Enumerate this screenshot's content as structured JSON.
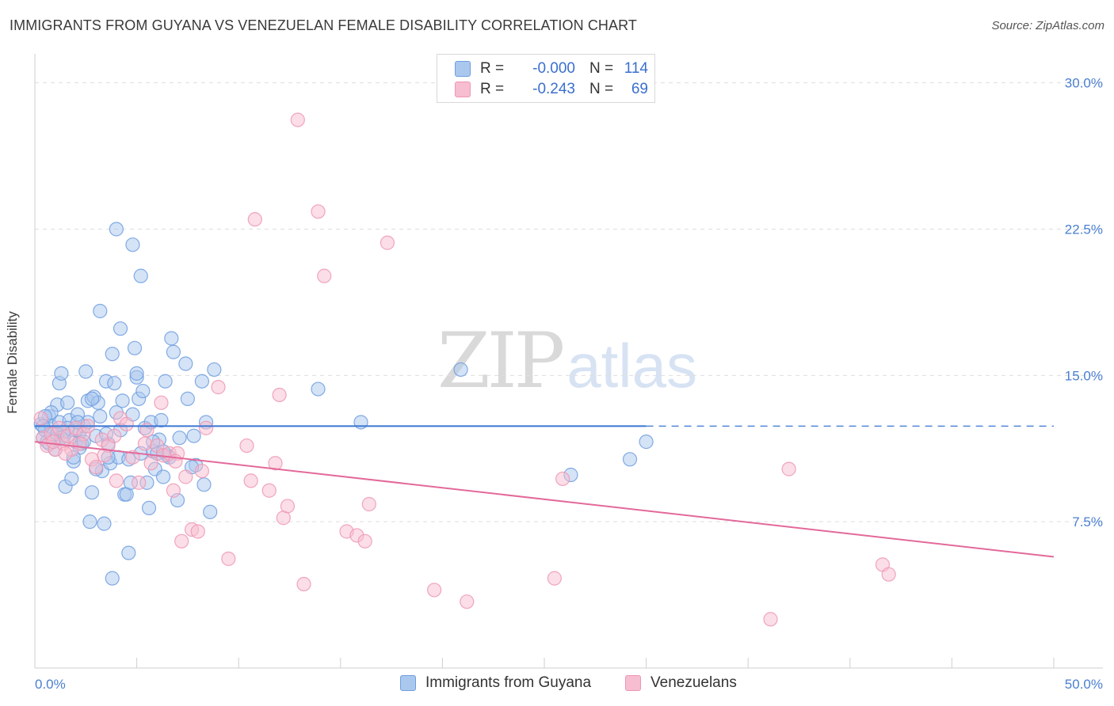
{
  "title": "IMMIGRANTS FROM GUYANA VS VENEZUELAN FEMALE DISABILITY CORRELATION CHART",
  "source": "Source: ZipAtlas.com",
  "watermark": {
    "zip": "ZIP",
    "atlas": "atlas"
  },
  "colors": {
    "blue_fill": "#aac7ee",
    "blue_stroke": "#6f9ee0",
    "blue_line": "#3a76d2",
    "pink_fill": "#f7bdd0",
    "pink_stroke": "#ee96b3",
    "pink_line": "#e3699a",
    "grid": "#dedede",
    "tick_text": "#4a7fd0"
  },
  "legend": {
    "blue": {
      "r_label": "R =",
      "r_value": "-0.000",
      "n_label": "N =",
      "n_value": "114"
    },
    "pink": {
      "r_label": "R =",
      "r_value": "-0.243",
      "n_label": "N =",
      "n_value": "69"
    }
  },
  "chart_data": {
    "type": "scatter",
    "title": "IMMIGRANTS FROM GUYANA VS VENEZUELAN FEMALE DISABILITY CORRELATION CHART",
    "xlabel": "",
    "ylabel": "Female Disability",
    "xlim": [
      0,
      50
    ],
    "ylim": [
      0,
      31
    ],
    "x_tick_labels": [
      "0.0%",
      "50.0%"
    ],
    "y_ticks": [
      7.5,
      15.0,
      22.5,
      30.0
    ],
    "y_tick_labels": [
      "7.5%",
      "15.0%",
      "22.5%",
      "30.0%"
    ],
    "grid": true,
    "series": [
      {
        "name": "Immigrants from Guyana",
        "color": "blue",
        "trend": {
          "x0": 0,
          "y0": 12.4,
          "x1": 30,
          "y1": 12.4,
          "dashed_to": 50
        },
        "points": [
          [
            0.3,
            12.5
          ],
          [
            0.4,
            11.8
          ],
          [
            0.5,
            12.2
          ],
          [
            0.6,
            11.6
          ],
          [
            0.7,
            12.9
          ],
          [
            0.8,
            12.4
          ],
          [
            0.9,
            12.0
          ],
          [
            1.0,
            11.7
          ],
          [
            1.1,
            13.5
          ],
          [
            1.2,
            14.6
          ],
          [
            1.2,
            12.6
          ],
          [
            1.3,
            15.1
          ],
          [
            1.4,
            11.9
          ],
          [
            1.5,
            9.3
          ],
          [
            1.6,
            13.6
          ],
          [
            1.7,
            12.7
          ],
          [
            1.8,
            9.7
          ],
          [
            1.9,
            10.6
          ],
          [
            2.0,
            11.6
          ],
          [
            2.1,
            13.0
          ],
          [
            2.2,
            12.1
          ],
          [
            2.3,
            11.5
          ],
          [
            2.4,
            12.4
          ],
          [
            2.5,
            15.2
          ],
          [
            2.6,
            13.7
          ],
          [
            2.7,
            7.5
          ],
          [
            2.8,
            9.0
          ],
          [
            2.9,
            13.9
          ],
          [
            3.0,
            11.9
          ],
          [
            3.1,
            13.6
          ],
          [
            3.2,
            18.3
          ],
          [
            3.3,
            10.1
          ],
          [
            3.4,
            7.4
          ],
          [
            3.5,
            14.7
          ],
          [
            3.6,
            11.5
          ],
          [
            3.7,
            10.5
          ],
          [
            3.8,
            16.1
          ],
          [
            3.9,
            14.6
          ],
          [
            4.0,
            13.1
          ],
          [
            4.1,
            10.8
          ],
          [
            4.2,
            12.2
          ],
          [
            4.3,
            13.7
          ],
          [
            4.4,
            8.9
          ],
          [
            4.5,
            8.9
          ],
          [
            4.6,
            5.9
          ],
          [
            4.7,
            9.5
          ],
          [
            4.8,
            21.7
          ],
          [
            4.9,
            16.4
          ],
          [
            5.0,
            14.9
          ],
          [
            5.1,
            13.8
          ],
          [
            5.2,
            11.0
          ],
          [
            5.3,
            14.2
          ],
          [
            5.4,
            12.3
          ],
          [
            5.5,
            9.5
          ],
          [
            5.6,
            8.2
          ],
          [
            5.7,
            12.6
          ],
          [
            5.8,
            11.1
          ],
          [
            5.9,
            10.2
          ],
          [
            6.1,
            11.7
          ],
          [
            6.2,
            12.7
          ],
          [
            6.3,
            9.8
          ],
          [
            6.4,
            14.7
          ],
          [
            6.5,
            10.9
          ],
          [
            6.6,
            10.8
          ],
          [
            6.7,
            16.9
          ],
          [
            6.8,
            16.2
          ],
          [
            7.0,
            8.6
          ],
          [
            7.1,
            11.8
          ],
          [
            7.4,
            15.6
          ],
          [
            7.5,
            13.8
          ],
          [
            7.8,
            11.9
          ],
          [
            7.9,
            10.4
          ],
          [
            8.2,
            14.7
          ],
          [
            8.3,
            9.4
          ],
          [
            8.4,
            12.6
          ],
          [
            8.6,
            8.0
          ],
          [
            8.8,
            15.3
          ],
          [
            2.0,
            12.2
          ],
          [
            1.0,
            11.2
          ],
          [
            3.5,
            12.0
          ],
          [
            4.0,
            22.5
          ],
          [
            5.2,
            20.1
          ],
          [
            6.0,
            11.0
          ],
          [
            2.2,
            11.3
          ],
          [
            0.8,
            13.1
          ],
          [
            1.6,
            12.3
          ],
          [
            2.6,
            12.6
          ],
          [
            3.0,
            10.2
          ],
          [
            3.8,
            4.6
          ],
          [
            4.2,
            17.4
          ],
          [
            5.0,
            15.1
          ],
          [
            6.3,
            11.1
          ],
          [
            4.6,
            10.7
          ],
          [
            3.2,
            12.9
          ],
          [
            1.9,
            10.8
          ],
          [
            2.8,
            13.8
          ],
          [
            1.4,
            12.1
          ],
          [
            7.7,
            10.3
          ],
          [
            0.5,
            12.9
          ],
          [
            1.1,
            12.0
          ],
          [
            2.4,
            11.6
          ],
          [
            3.6,
            10.8
          ],
          [
            4.8,
            13.0
          ],
          [
            5.8,
            11.6
          ],
          [
            13.9,
            14.3
          ],
          [
            16.0,
            12.6
          ],
          [
            20.9,
            15.3
          ],
          [
            26.3,
            9.9
          ],
          [
            29.2,
            10.7
          ],
          [
            30.0,
            11.6
          ],
          [
            0.7,
            11.5
          ],
          [
            1.3,
            11.8
          ],
          [
            2.1,
            12.6
          ],
          [
            0.4,
            12.4
          ]
        ]
      },
      {
        "name": "Venezuelans",
        "color": "pink",
        "trend": {
          "x0": 0,
          "y0": 11.6,
          "x1": 50,
          "y1": 5.7
        },
        "points": [
          [
            0.3,
            12.8
          ],
          [
            0.4,
            11.8
          ],
          [
            0.6,
            11.4
          ],
          [
            0.8,
            12.0
          ],
          [
            1.0,
            11.2
          ],
          [
            1.2,
            12.3
          ],
          [
            1.4,
            11.5
          ],
          [
            1.6,
            11.9
          ],
          [
            1.8,
            11.2
          ],
          [
            2.0,
            12.3
          ],
          [
            2.4,
            12.0
          ],
          [
            2.6,
            12.4
          ],
          [
            2.8,
            10.7
          ],
          [
            3.0,
            10.3
          ],
          [
            3.3,
            11.7
          ],
          [
            3.6,
            11.4
          ],
          [
            3.9,
            11.9
          ],
          [
            4.2,
            12.8
          ],
          [
            4.5,
            12.5
          ],
          [
            4.8,
            10.8
          ],
          [
            5.1,
            9.5
          ],
          [
            5.4,
            11.5
          ],
          [
            5.7,
            10.5
          ],
          [
            6.0,
            11.4
          ],
          [
            6.3,
            10.9
          ],
          [
            6.6,
            11.0
          ],
          [
            7.2,
            6.5
          ],
          [
            7.7,
            7.1
          ],
          [
            8.0,
            7.0
          ],
          [
            8.4,
            12.3
          ],
          [
            9.0,
            14.4
          ],
          [
            9.5,
            5.6
          ],
          [
            10.4,
            11.4
          ],
          [
            10.6,
            9.6
          ],
          [
            10.8,
            23.0
          ],
          [
            11.5,
            9.1
          ],
          [
            11.8,
            10.5
          ],
          [
            12.2,
            7.7
          ],
          [
            12.4,
            8.3
          ],
          [
            12.9,
            28.1
          ],
          [
            13.2,
            4.3
          ],
          [
            13.9,
            23.4
          ],
          [
            14.2,
            20.1
          ],
          [
            15.3,
            7.0
          ],
          [
            15.8,
            6.8
          ],
          [
            16.2,
            6.5
          ],
          [
            16.4,
            8.4
          ],
          [
            17.3,
            21.8
          ],
          [
            19.6,
            4.0
          ],
          [
            21.2,
            3.4
          ],
          [
            25.5,
            4.6
          ],
          [
            25.9,
            9.7
          ],
          [
            36.1,
            2.5
          ],
          [
            37.0,
            10.2
          ],
          [
            41.6,
            5.3
          ],
          [
            41.9,
            4.8
          ],
          [
            6.2,
            13.6
          ],
          [
            5.5,
            12.2
          ],
          [
            4.0,
            9.6
          ],
          [
            6.8,
            9.1
          ],
          [
            7.4,
            9.8
          ],
          [
            8.2,
            10.1
          ],
          [
            7.0,
            11.0
          ],
          [
            1.5,
            11.0
          ],
          [
            2.2,
            11.5
          ],
          [
            3.4,
            10.9
          ],
          [
            0.9,
            11.6
          ],
          [
            6.9,
            10.6
          ],
          [
            12.0,
            14.0
          ]
        ]
      }
    ]
  },
  "bottom_legend": [
    {
      "label": "Immigrants from Guyana",
      "color": "blue"
    },
    {
      "label": "Venezuelans",
      "color": "pink"
    }
  ]
}
